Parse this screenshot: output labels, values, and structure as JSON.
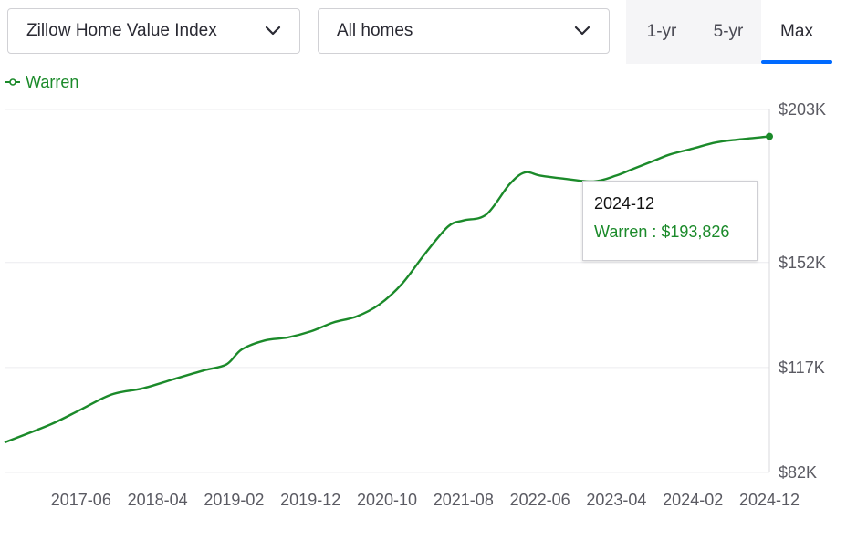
{
  "toolbar": {
    "metric_select": "Zillow Home Value Index",
    "home_type_select": "All homes",
    "range_tabs": [
      "1-yr",
      "5-yr",
      "Max"
    ],
    "active_range": "Max",
    "accent_color": "#006aff"
  },
  "legend": {
    "label": "Warren",
    "color": "#1b8a2a",
    "icon": "line-marker-icon"
  },
  "tooltip": {
    "date": "2024-12",
    "text": "Warren : $193,826"
  },
  "chart_data": {
    "type": "line",
    "title": "",
    "xlabel": "",
    "ylabel": "",
    "y_tick_labels": [
      "$203K",
      "$152K",
      "$117K",
      "$82K"
    ],
    "y_ticks": [
      203,
      152,
      117,
      82
    ],
    "ylim": [
      82,
      203
    ],
    "x_tick_labels": [
      "2017-06",
      "2018-04",
      "2019-02",
      "2019-12",
      "2020-10",
      "2021-08",
      "2022-06",
      "2023-04",
      "2024-02",
      "2024-12"
    ],
    "x_ticks": [
      "2017-06",
      "2018-04",
      "2019-02",
      "2019-12",
      "2020-10",
      "2021-08",
      "2022-06",
      "2023-04",
      "2024-02",
      "2024-12"
    ],
    "grid": "horizontal",
    "series": [
      {
        "name": "Warren",
        "color": "#1b8a2a",
        "x": [
          "2016-08",
          "2017-02",
          "2017-06",
          "2017-10",
          "2018-02",
          "2018-06",
          "2018-10",
          "2019-01",
          "2019-03",
          "2019-06",
          "2019-09",
          "2019-12",
          "2020-03",
          "2020-06",
          "2020-09",
          "2020-12",
          "2021-03",
          "2021-06",
          "2021-08",
          "2021-11",
          "2022-02",
          "2022-04",
          "2022-06",
          "2022-09",
          "2023-01",
          "2023-04",
          "2023-06",
          "2023-09",
          "2023-11",
          "2024-02",
          "2024-05",
          "2024-08",
          "2024-12"
        ],
        "y": [
          92,
          98,
          103,
          108,
          110,
          113,
          116,
          118,
          123,
          126,
          127,
          129,
          132,
          134,
          138,
          145,
          155,
          164,
          166,
          168,
          178,
          182,
          181,
          180,
          179,
          181,
          183,
          186,
          188,
          190,
          192,
          193,
          194
        ]
      }
    ]
  }
}
